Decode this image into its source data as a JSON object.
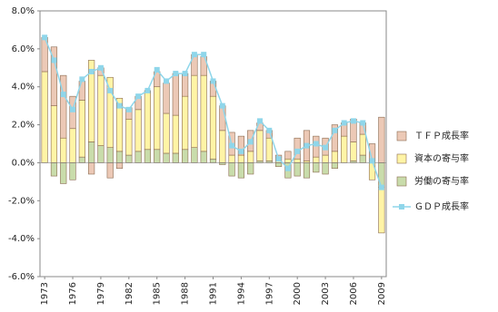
{
  "chart_data": {
    "type": "stacked-bar-line",
    "categories": [
      "1973",
      null,
      null,
      "1976",
      null,
      null,
      "1979",
      null,
      null,
      "1982",
      null,
      null,
      "1985",
      null,
      null,
      "1988",
      null,
      null,
      "1991",
      null,
      null,
      "1994",
      null,
      null,
      "1997",
      null,
      null,
      "2000",
      null,
      null,
      "2003",
      null,
      null,
      "2006",
      null,
      null,
      "2009"
    ],
    "series": [
      {
        "name": "ＴＦＰ成長率",
        "type": "bar",
        "color": "#ecc9b6",
        "values": [
          1.8,
          3.1,
          3.3,
          1.7,
          1.0,
          -0.6,
          0.4,
          -0.8,
          -0.3,
          0.6,
          0.7,
          0.1,
          0.8,
          1.6,
          2.2,
          1.2,
          1.1,
          1.0,
          0.8,
          1.3,
          1.2,
          1.0,
          1.1,
          0.4,
          0.4,
          0.1,
          0.4,
          1.1,
          1.6,
          1.1,
          0.9,
          1.4,
          0.7,
          1.2,
          0.6,
          1.0,
          2.4
        ]
      },
      {
        "name": "資本の寄与率",
        "type": "bar",
        "color": "#fff4a6",
        "values": [
          4.8,
          3.0,
          1.3,
          1.8,
          3.0,
          4.3,
          3.7,
          3.7,
          2.8,
          1.9,
          2.2,
          3.0,
          3.3,
          2.1,
          2.0,
          2.8,
          3.8,
          4.0,
          3.3,
          1.7,
          0.4,
          0.4,
          0.6,
          1.6,
          1.2,
          0.3,
          0.2,
          0.2,
          0.1,
          0.3,
          0.4,
          0.6,
          1.4,
          1.0,
          1.1,
          -0.9,
          -2.4
        ]
      },
      {
        "name": "労働の寄与率",
        "type": "bar",
        "color": "#c9dcab",
        "values": [
          0.0,
          -0.7,
          -1.1,
          -0.9,
          0.3,
          1.1,
          0.9,
          0.8,
          0.6,
          0.4,
          0.6,
          0.7,
          0.7,
          0.5,
          0.5,
          0.7,
          0.8,
          0.6,
          0.2,
          -0.1,
          -0.7,
          -0.8,
          -0.6,
          0.1,
          0.1,
          -0.2,
          -0.8,
          -0.7,
          -0.8,
          -0.5,
          -0.6,
          -0.3,
          0.0,
          0.1,
          0.4,
          0.0,
          -1.3
        ]
      },
      {
        "name": "ＧＤＰ成長率",
        "type": "line",
        "color": "#8fd6ea",
        "values": [
          6.6,
          5.4,
          3.6,
          2.8,
          4.4,
          4.8,
          5.0,
          3.8,
          3.0,
          2.8,
          3.5,
          3.8,
          4.9,
          4.3,
          4.7,
          4.7,
          5.7,
          5.7,
          4.3,
          3.0,
          0.9,
          0.6,
          1.1,
          2.2,
          1.7,
          0.2,
          -0.3,
          0.6,
          0.9,
          1.0,
          0.8,
          1.7,
          2.1,
          2.2,
          2.1,
          0.1,
          -1.3
        ]
      }
    ],
    "ylim": [
      -6,
      8
    ],
    "yticks": [
      {
        "value": -6,
        "label": "-6.0%"
      },
      {
        "value": -4,
        "label": "-4.0%"
      },
      {
        "value": -2,
        "label": "-2.0%"
      },
      {
        "value": 0,
        "label": "0.0%"
      },
      {
        "value": 2,
        "label": "2.0%"
      },
      {
        "value": 4,
        "label": "4.0%"
      },
      {
        "value": 6,
        "label": "6.0%"
      },
      {
        "value": 8,
        "label": "8.0%"
      }
    ],
    "grid": false,
    "legend": "right"
  }
}
